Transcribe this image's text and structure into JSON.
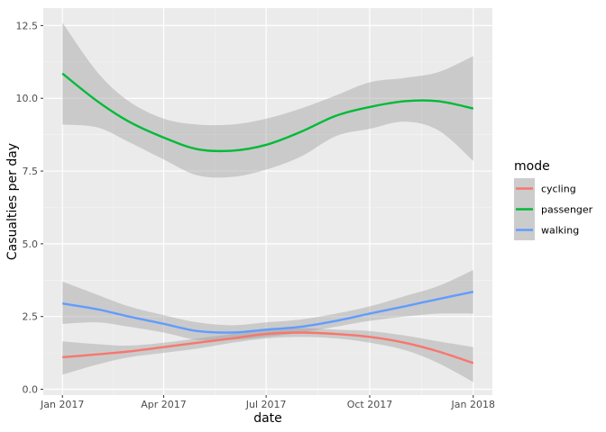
{
  "chart_data": {
    "type": "line",
    "xlabel": "date",
    "ylabel": "Casualties per day",
    "x_ticks": [
      "Jan 2017",
      "Apr 2017",
      "Jul 2017",
      "Oct 2017",
      "Jan 2018"
    ],
    "x_range": [
      "2016-12-15",
      "2018-01-18"
    ],
    "y_ticks": [
      "0.0",
      "2.5",
      "5.0",
      "7.5",
      "10.0",
      "12.5"
    ],
    "y_tick_values": [
      0,
      2.5,
      5,
      7.5,
      10,
      12.5
    ],
    "ylim": [
      -0.2,
      13.1
    ],
    "grid": true,
    "legend": {
      "title": "mode",
      "position": "right"
    },
    "series": [
      {
        "name": "cycling",
        "color": "#F8766D",
        "x": [
          "2017-01-01",
          "2017-02-01",
          "2017-03-01",
          "2017-04-01",
          "2017-05-01",
          "2017-06-01",
          "2017-07-01",
          "2017-08-01",
          "2017-09-01",
          "2017-10-01",
          "2017-11-01",
          "2017-12-01",
          "2018-01-01"
        ],
        "y": [
          1.1,
          1.2,
          1.3,
          1.45,
          1.6,
          1.75,
          1.9,
          1.95,
          1.9,
          1.8,
          1.6,
          1.3,
          0.9
        ],
        "lower": [
          0.5,
          0.85,
          1.1,
          1.25,
          1.4,
          1.6,
          1.75,
          1.8,
          1.75,
          1.6,
          1.35,
          0.9,
          0.25
        ],
        "upper": [
          1.65,
          1.55,
          1.5,
          1.6,
          1.75,
          1.9,
          2.05,
          2.1,
          2.05,
          2.0,
          1.85,
          1.65,
          1.45
        ]
      },
      {
        "name": "passenger",
        "color": "#00BA38",
        "x": [
          "2017-01-01",
          "2017-02-01",
          "2017-03-01",
          "2017-04-01",
          "2017-05-01",
          "2017-06-01",
          "2017-07-01",
          "2017-08-01",
          "2017-09-01",
          "2017-10-01",
          "2017-11-01",
          "2017-12-01",
          "2018-01-01"
        ],
        "y": [
          10.85,
          9.9,
          9.2,
          8.65,
          8.25,
          8.2,
          8.4,
          8.85,
          9.4,
          9.7,
          9.9,
          9.9,
          9.65
        ],
        "lower": [
          9.1,
          9.0,
          8.5,
          7.9,
          7.35,
          7.3,
          7.55,
          8.0,
          8.7,
          8.95,
          9.2,
          8.9,
          7.85
        ],
        "upper": [
          12.6,
          10.9,
          9.9,
          9.3,
          9.1,
          9.1,
          9.3,
          9.65,
          10.1,
          10.55,
          10.7,
          10.9,
          11.45
        ]
      },
      {
        "name": "walking",
        "color": "#619CFF",
        "x": [
          "2017-01-01",
          "2017-02-01",
          "2017-03-01",
          "2017-04-01",
          "2017-05-01",
          "2017-06-01",
          "2017-07-01",
          "2017-08-01",
          "2017-09-01",
          "2017-10-01",
          "2017-11-01",
          "2017-12-01",
          "2018-01-01"
        ],
        "y": [
          2.95,
          2.75,
          2.5,
          2.25,
          2.0,
          1.95,
          2.05,
          2.15,
          2.35,
          2.6,
          2.85,
          3.1,
          3.35
        ],
        "lower": [
          2.25,
          2.3,
          2.15,
          1.95,
          1.7,
          1.7,
          1.8,
          1.95,
          2.15,
          2.35,
          2.5,
          2.6,
          2.6
        ],
        "upper": [
          3.7,
          3.25,
          2.85,
          2.55,
          2.3,
          2.2,
          2.3,
          2.4,
          2.6,
          2.85,
          3.2,
          3.55,
          4.1
        ]
      }
    ]
  }
}
